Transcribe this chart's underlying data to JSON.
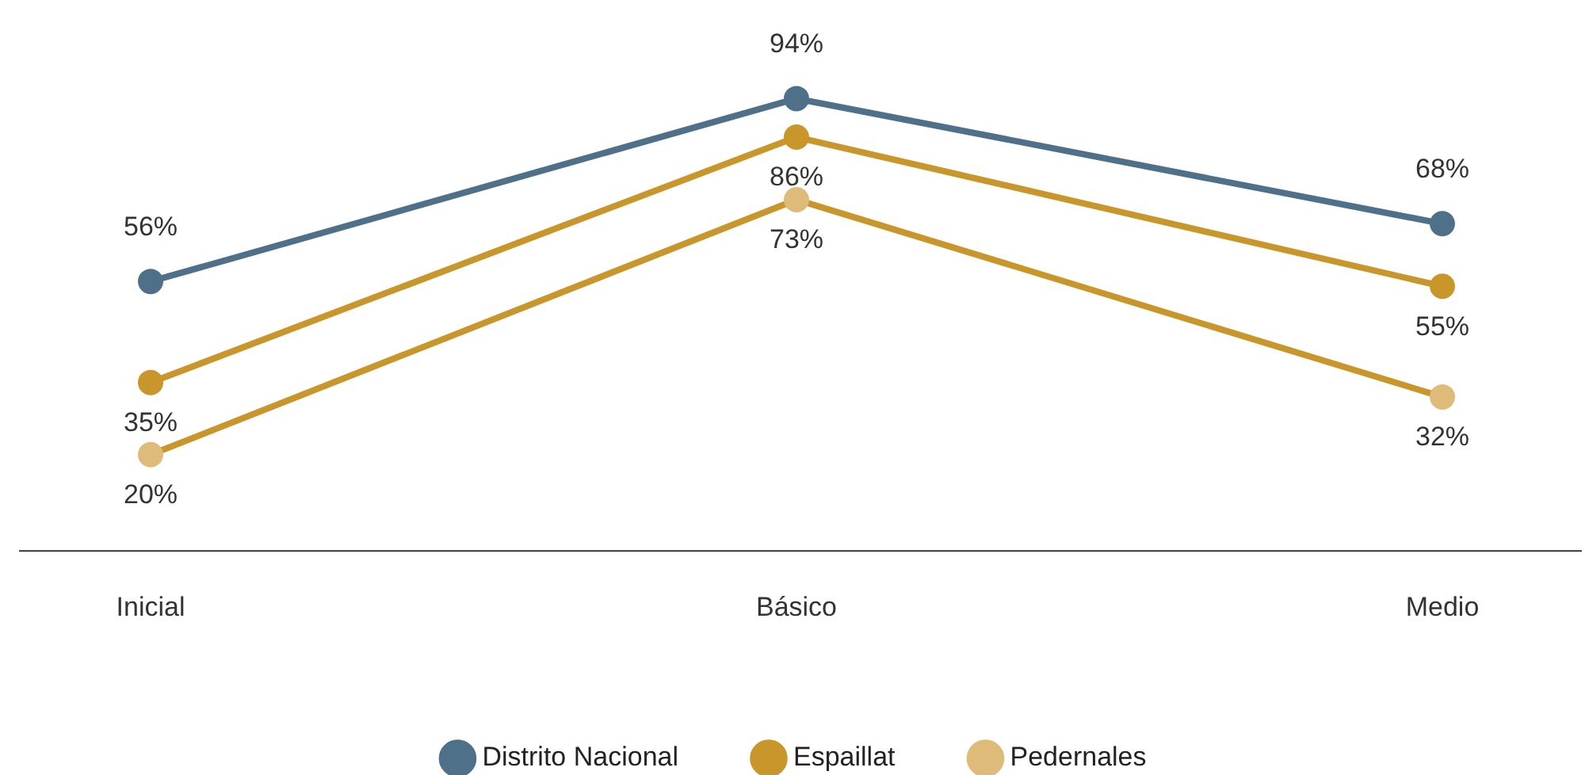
{
  "chart_data": {
    "type": "line",
    "categories": [
      "Inicial",
      "Básico",
      "Medio"
    ],
    "tick_labels": "x",
    "legend": "bottom",
    "marker": "circle",
    "line_style": "solid",
    "grid": false,
    "series": [
      {
        "name": "Distrito Nacional",
        "color": "#4f7089",
        "values": [
          56,
          94,
          68
        ],
        "value_labels": [
          "56%",
          "94%",
          "68%"
        ]
      },
      {
        "name": "Espaillat",
        "color": "#c9962b",
        "values": [
          35,
          86,
          55
        ],
        "value_labels": [
          "35%",
          "86%",
          "55%"
        ]
      },
      {
        "name": "Pedernales",
        "color": "#c9962b",
        "colors": [
          "#dfbb7a",
          "#dfbb7a",
          "#dfbb7a"
        ],
        "values": [
          20,
          73,
          32
        ],
        "value_labels": [
          "20%",
          "73%",
          "32%"
        ]
      }
    ]
  }
}
